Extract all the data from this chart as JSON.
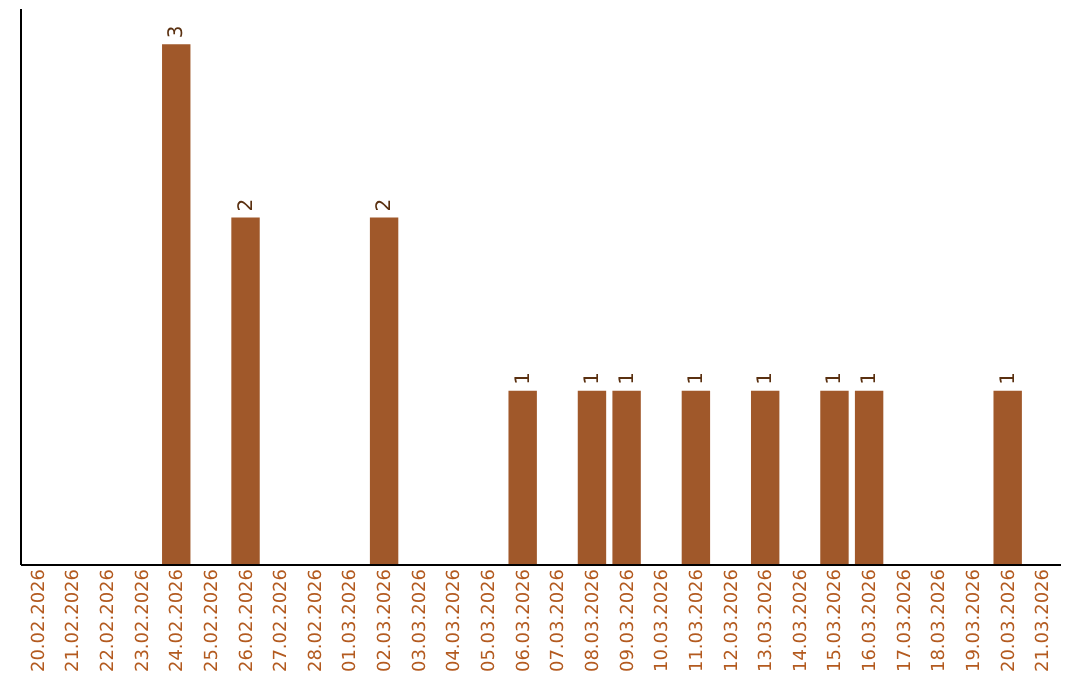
{
  "chart_data": {
    "type": "bar",
    "categories": [
      "20.02.2026",
      "21.02.2026",
      "22.02.2026",
      "23.02.2026",
      "24.02.2026",
      "25.02.2026",
      "26.02.2026",
      "27.02.2026",
      "28.02.2026",
      "01.03.2026",
      "02.03.2026",
      "03.03.2026",
      "04.03.2026",
      "05.03.2026",
      "06.03.2026",
      "07.03.2026",
      "08.03.2026",
      "09.03.2026",
      "10.03.2026",
      "11.03.2026",
      "12.03.2026",
      "13.03.2026",
      "14.03.2026",
      "15.03.2026",
      "16.03.2026",
      "17.03.2026",
      "18.03.2026",
      "19.03.2026",
      "20.03.2026",
      "21.03.2026"
    ],
    "values": [
      null,
      null,
      null,
      null,
      3,
      null,
      2,
      null,
      null,
      null,
      2,
      null,
      null,
      null,
      1,
      null,
      1,
      1,
      null,
      1,
      null,
      1,
      null,
      1,
      1,
      null,
      null,
      null,
      1,
      null
    ],
    "color": "#a0582a",
    "data_labels": true,
    "grid": false,
    "tick_labels": "x"
  }
}
